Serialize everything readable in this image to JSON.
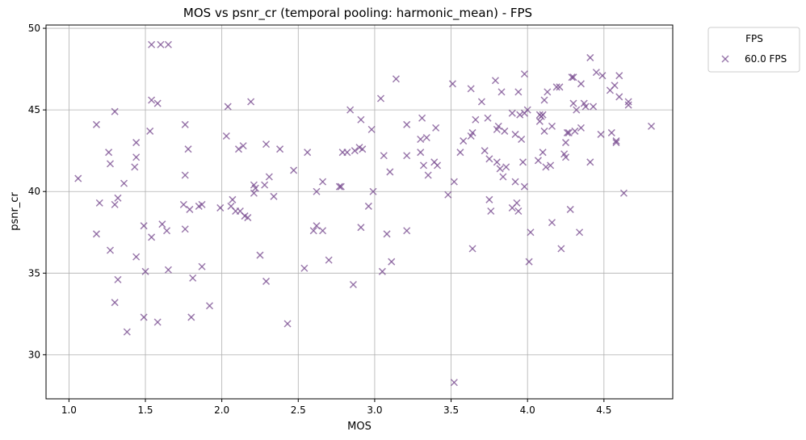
{
  "chart_data": {
    "type": "scatter",
    "title": "MOS vs psnr_cr (temporal pooling: harmonic_mean) - FPS",
    "xlabel": "MOS",
    "ylabel": "psnr_cr",
    "xlim": [
      0.85,
      4.95
    ],
    "ylim": [
      27.3,
      50.2
    ],
    "xticks": [
      1.0,
      1.5,
      2.0,
      2.5,
      3.0,
      3.5,
      4.0,
      4.5
    ],
    "xtick_labels": [
      "1.0",
      "1.5",
      "2.0",
      "2.5",
      "3.0",
      "3.5",
      "4.0",
      "4.5"
    ],
    "yticks": [
      30,
      35,
      40,
      45,
      50
    ],
    "ytick_labels": [
      "30",
      "35",
      "40",
      "45",
      "50"
    ],
    "grid": true,
    "legend": {
      "title": "FPS",
      "placement": "outside-top-right"
    },
    "marker": "x",
    "color": "#7b4f92",
    "series": [
      {
        "name": "60.0 FPS",
        "points": [
          [
            1.06,
            40.8
          ],
          [
            1.18,
            44.1
          ],
          [
            1.18,
            37.4
          ],
          [
            1.2,
            39.3
          ],
          [
            1.26,
            42.4
          ],
          [
            1.27,
            41.7
          ],
          [
            1.27,
            36.4
          ],
          [
            1.3,
            44.9
          ],
          [
            1.3,
            39.2
          ],
          [
            1.3,
            33.2
          ],
          [
            1.32,
            39.6
          ],
          [
            1.32,
            34.6
          ],
          [
            1.36,
            40.5
          ],
          [
            1.38,
            31.4
          ],
          [
            1.43,
            41.5
          ],
          [
            1.44,
            43.0
          ],
          [
            1.44,
            42.1
          ],
          [
            1.44,
            36.0
          ],
          [
            1.49,
            37.9
          ],
          [
            1.49,
            32.3
          ],
          [
            1.5,
            35.1
          ],
          [
            1.53,
            43.7
          ],
          [
            1.54,
            45.6
          ],
          [
            1.54,
            49.0
          ],
          [
            1.54,
            37.2
          ],
          [
            1.58,
            45.4
          ],
          [
            1.58,
            32.0
          ],
          [
            1.6,
            49.0
          ],
          [
            1.61,
            38.0
          ],
          [
            1.64,
            37.6
          ],
          [
            1.65,
            49.0
          ],
          [
            1.65,
            35.2
          ],
          [
            1.75,
            39.2
          ],
          [
            1.76,
            44.1
          ],
          [
            1.76,
            41.0
          ],
          [
            1.76,
            37.7
          ],
          [
            1.78,
            42.6
          ],
          [
            1.79,
            38.9
          ],
          [
            1.8,
            32.3
          ],
          [
            1.81,
            34.7
          ],
          [
            1.85,
            39.1
          ],
          [
            1.87,
            39.2
          ],
          [
            1.87,
            35.4
          ],
          [
            1.92,
            33.0
          ],
          [
            1.99,
            39.0
          ],
          [
            2.03,
            43.4
          ],
          [
            2.04,
            45.2
          ],
          [
            2.06,
            39.1
          ],
          [
            2.07,
            39.5
          ],
          [
            2.09,
            38.8
          ],
          [
            2.11,
            42.6
          ],
          [
            2.12,
            38.8
          ],
          [
            2.14,
            42.8
          ],
          [
            2.15,
            38.5
          ],
          [
            2.17,
            38.4
          ],
          [
            2.19,
            45.5
          ],
          [
            2.21,
            40.4
          ],
          [
            2.21,
            39.9
          ],
          [
            2.22,
            40.2
          ],
          [
            2.25,
            36.1
          ],
          [
            2.28,
            40.4
          ],
          [
            2.29,
            34.5
          ],
          [
            2.29,
            42.9
          ],
          [
            2.31,
            40.9
          ],
          [
            2.34,
            39.7
          ],
          [
            2.38,
            42.6
          ],
          [
            2.43,
            31.9
          ],
          [
            2.47,
            41.3
          ],
          [
            2.54,
            35.3
          ],
          [
            2.56,
            42.4
          ],
          [
            2.6,
            37.6
          ],
          [
            2.62,
            40.0
          ],
          [
            2.62,
            37.9
          ],
          [
            2.66,
            40.6
          ],
          [
            2.66,
            37.6
          ],
          [
            2.7,
            35.8
          ],
          [
            2.77,
            40.3
          ],
          [
            2.78,
            40.3
          ],
          [
            2.79,
            42.4
          ],
          [
            2.82,
            42.4
          ],
          [
            2.84,
            45.0
          ],
          [
            2.86,
            34.3
          ],
          [
            2.87,
            42.5
          ],
          [
            2.9,
            42.7
          ],
          [
            2.91,
            44.4
          ],
          [
            2.91,
            37.8
          ],
          [
            2.92,
            42.6
          ],
          [
            2.96,
            39.1
          ],
          [
            2.98,
            43.8
          ],
          [
            2.99,
            40.0
          ],
          [
            3.04,
            45.7
          ],
          [
            3.05,
            35.1
          ],
          [
            3.06,
            42.2
          ],
          [
            3.08,
            37.4
          ],
          [
            3.1,
            41.2
          ],
          [
            3.11,
            35.7
          ],
          [
            3.14,
            46.9
          ],
          [
            3.21,
            44.1
          ],
          [
            3.21,
            42.2
          ],
          [
            3.21,
            37.6
          ],
          [
            3.3,
            42.4
          ],
          [
            3.3,
            43.2
          ],
          [
            3.31,
            44.5
          ],
          [
            3.32,
            41.6
          ],
          [
            3.34,
            43.3
          ],
          [
            3.35,
            41.0
          ],
          [
            3.39,
            41.8
          ],
          [
            3.4,
            43.9
          ],
          [
            3.41,
            41.6
          ],
          [
            3.48,
            39.8
          ],
          [
            3.51,
            46.6
          ],
          [
            3.52,
            40.6
          ],
          [
            3.52,
            28.3
          ],
          [
            3.56,
            42.4
          ],
          [
            3.58,
            43.1
          ],
          [
            3.63,
            43.4
          ],
          [
            3.63,
            46.3
          ],
          [
            3.64,
            43.6
          ],
          [
            3.64,
            36.5
          ],
          [
            3.66,
            44.4
          ],
          [
            3.7,
            45.5
          ],
          [
            3.72,
            42.5
          ],
          [
            3.74,
            44.5
          ],
          [
            3.75,
            39.5
          ],
          [
            3.75,
            42.0
          ],
          [
            3.76,
            38.8
          ],
          [
            3.79,
            46.8
          ],
          [
            3.8,
            41.8
          ],
          [
            3.8,
            43.8
          ],
          [
            3.81,
            44.0
          ],
          [
            3.82,
            41.4
          ],
          [
            3.83,
            46.1
          ],
          [
            3.84,
            40.9
          ],
          [
            3.85,
            43.7
          ],
          [
            3.86,
            41.5
          ],
          [
            3.9,
            44.8
          ],
          [
            3.9,
            39.0
          ],
          [
            3.92,
            43.5
          ],
          [
            3.92,
            40.6
          ],
          [
            3.93,
            39.3
          ],
          [
            3.94,
            46.1
          ],
          [
            3.94,
            38.8
          ],
          [
            3.95,
            44.7
          ],
          [
            3.96,
            43.2
          ],
          [
            3.97,
            41.8
          ],
          [
            3.98,
            44.8
          ],
          [
            3.98,
            47.2
          ],
          [
            3.98,
            40.3
          ],
          [
            4.0,
            45.0
          ],
          [
            4.01,
            35.7
          ],
          [
            4.02,
            37.5
          ],
          [
            4.07,
            41.9
          ],
          [
            4.08,
            44.7
          ],
          [
            4.08,
            44.3
          ],
          [
            4.09,
            44.6
          ],
          [
            4.1,
            44.7
          ],
          [
            4.1,
            42.4
          ],
          [
            4.11,
            45.6
          ],
          [
            4.11,
            43.7
          ],
          [
            4.12,
            41.5
          ],
          [
            4.13,
            46.1
          ],
          [
            4.15,
            41.6
          ],
          [
            4.16,
            44.0
          ],
          [
            4.16,
            38.1
          ],
          [
            4.19,
            46.4
          ],
          [
            4.21,
            46.4
          ],
          [
            4.22,
            36.5
          ],
          [
            4.24,
            42.3
          ],
          [
            4.25,
            42.1
          ],
          [
            4.25,
            43.0
          ],
          [
            4.26,
            43.6
          ],
          [
            4.27,
            43.6
          ],
          [
            4.28,
            38.9
          ],
          [
            4.29,
            47.0
          ],
          [
            4.3,
            47.0
          ],
          [
            4.3,
            45.4
          ],
          [
            4.31,
            43.7
          ],
          [
            4.32,
            45.0
          ],
          [
            4.34,
            37.5
          ],
          [
            4.35,
            43.9
          ],
          [
            4.35,
            46.6
          ],
          [
            4.37,
            45.4
          ],
          [
            4.38,
            45.2
          ],
          [
            4.41,
            48.2
          ],
          [
            4.41,
            41.8
          ],
          [
            4.43,
            45.2
          ],
          [
            4.45,
            47.3
          ],
          [
            4.48,
            43.5
          ],
          [
            4.49,
            47.1
          ],
          [
            4.54,
            46.2
          ],
          [
            4.55,
            43.6
          ],
          [
            4.57,
            46.5
          ],
          [
            4.58,
            43.1
          ],
          [
            4.58,
            43.0
          ],
          [
            4.6,
            47.1
          ],
          [
            4.6,
            45.8
          ],
          [
            4.63,
            39.9
          ],
          [
            4.66,
            45.3
          ],
          [
            4.66,
            45.5
          ],
          [
            4.81,
            44.0
          ]
        ]
      }
    ]
  }
}
